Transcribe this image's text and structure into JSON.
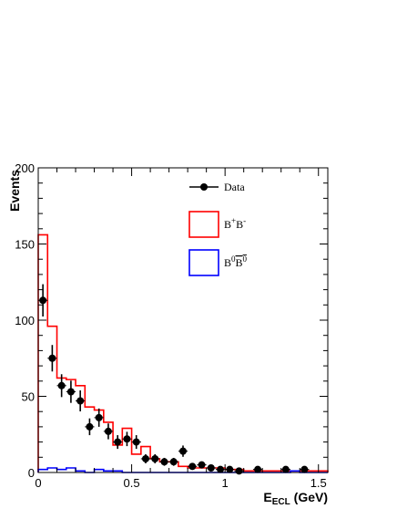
{
  "chart_data": {
    "type": "histogram",
    "xlabel": "E",
    "xlabel_sub": "ECL",
    "xlabel_unit": " (GeV)",
    "ylabel": "Events",
    "xlim": [
      0,
      1.55
    ],
    "ylim": [
      0,
      200
    ],
    "x_ticks": [
      0,
      0.5,
      1,
      1.5
    ],
    "x_tick_labels": [
      "0",
      "0.5",
      "1",
      "1.5"
    ],
    "y_ticks": [
      0,
      50,
      100,
      150,
      200
    ],
    "y_tick_labels": [
      "0",
      "50",
      "100",
      "150",
      "200"
    ],
    "grid": false,
    "legend": {
      "placement": "top-right",
      "entries": [
        {
          "key": "data",
          "label": "Data",
          "style": "marker"
        },
        {
          "key": "bpbm",
          "label": "B",
          "sup": "+",
          "label2": "B",
          "sup2": "-",
          "style": "box",
          "color": "#ff0000"
        },
        {
          "key": "b0b0bar",
          "label": "B",
          "sup": "0",
          "label2": "B",
          "sup2": "0",
          "overline2": true,
          "style": "box",
          "color": "#0000ff"
        }
      ]
    },
    "bin_edges": [
      0,
      0.05,
      0.1,
      0.15,
      0.2,
      0.25,
      0.3,
      0.35,
      0.4,
      0.45,
      0.5,
      0.55,
      0.6,
      0.65,
      0.7,
      0.75,
      0.8,
      0.85,
      0.9,
      0.95,
      1.0,
      1.05,
      1.1,
      1.15,
      1.2,
      1.25,
      1.3,
      1.35,
      1.4,
      1.45,
      1.5,
      1.55
    ],
    "series": [
      {
        "name": "B+B-",
        "kind": "step",
        "color": "#ff0000",
        "values": [
          156,
          96,
          62,
          61,
          57,
          43,
          41,
          33,
          18,
          29,
          12,
          17,
          9,
          7,
          7,
          4,
          3,
          3,
          3,
          3,
          2,
          2,
          1,
          1,
          1,
          1,
          1,
          1,
          1,
          1,
          1
        ]
      },
      {
        "name": "B0B0bar",
        "kind": "step",
        "color": "#0000ff",
        "values": [
          2,
          3,
          2,
          3,
          1,
          0,
          2,
          1,
          1,
          0,
          0,
          0,
          0,
          0,
          0,
          0,
          0,
          0,
          0,
          0,
          0,
          0,
          0,
          0,
          0,
          0,
          0,
          1,
          0,
          0,
          0
        ]
      },
      {
        "name": "Data",
        "kind": "points",
        "color": "#000000",
        "x": [
          0.025,
          0.075,
          0.125,
          0.175,
          0.225,
          0.275,
          0.325,
          0.375,
          0.425,
          0.475,
          0.525,
          0.575,
          0.625,
          0.675,
          0.725,
          0.775,
          0.825,
          0.875,
          0.925,
          0.975,
          1.025,
          1.075,
          1.175,
          1.325,
          1.425
        ],
        "y": [
          113,
          75,
          57,
          53,
          47,
          30,
          36,
          27,
          20,
          22,
          20,
          9,
          9,
          7,
          7,
          14,
          4,
          5,
          3,
          2,
          2,
          1,
          2,
          2,
          2
        ],
        "yerr": [
          10.6,
          8.7,
          7.5,
          7.3,
          6.9,
          5.5,
          6.0,
          5.2,
          4.5,
          4.7,
          4.5,
          3.0,
          3.0,
          2.6,
          2.6,
          3.7,
          2.0,
          2.2,
          1.7,
          1.4,
          1.4,
          1.0,
          1.4,
          1.4,
          1.4
        ]
      }
    ]
  }
}
